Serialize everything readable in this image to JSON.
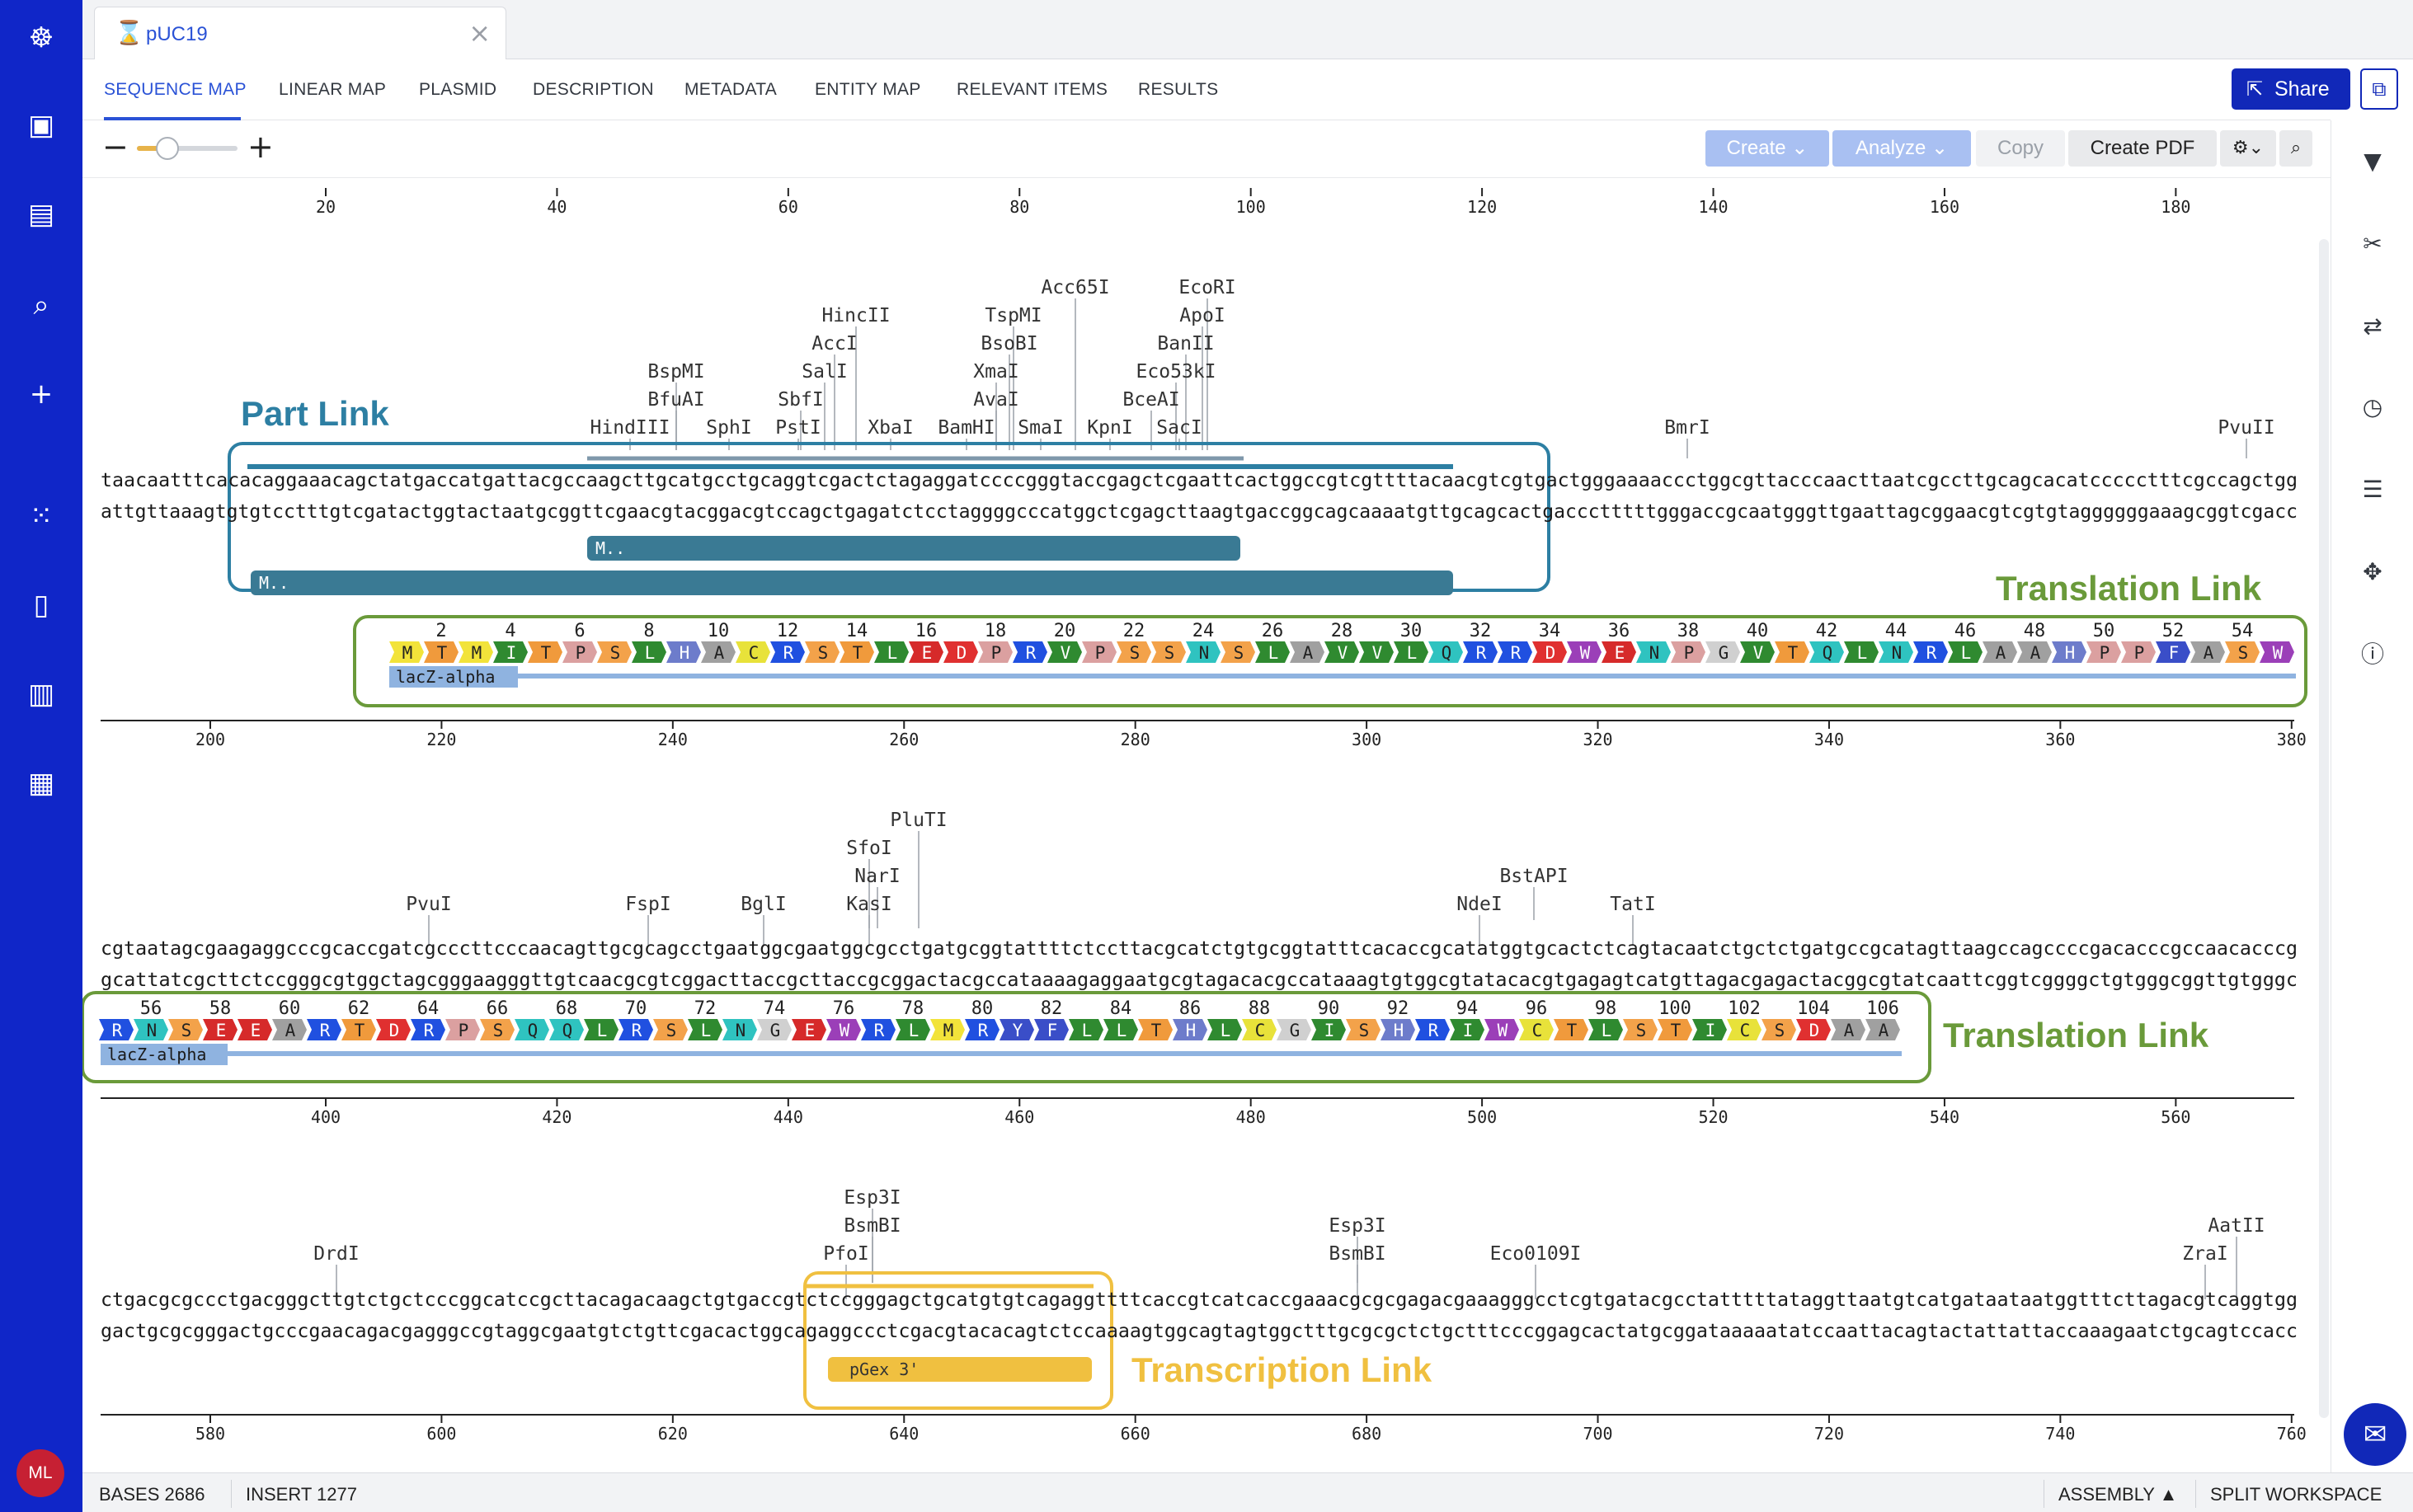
{
  "nav": {
    "icons": [
      "logo-icon",
      "briefcase-icon",
      "book-icon",
      "search-icon",
      "plus-icon",
      "apps-grid-icon",
      "notebook-icon",
      "bar-chart-icon",
      "camera-icon"
    ],
    "avatar_initials": "ML"
  },
  "document_tab": {
    "title": "pUC19",
    "icon": "hourglass-icon",
    "close": "×"
  },
  "view_tabs": [
    {
      "label": "SEQUENCE MAP",
      "active": true
    },
    {
      "label": "LINEAR MAP"
    },
    {
      "label": "PLASMID"
    },
    {
      "label": "DESCRIPTION"
    },
    {
      "label": "METADATA"
    },
    {
      "label": "ENTITY MAP"
    },
    {
      "label": "RELEVANT ITEMS"
    },
    {
      "label": "RESULTS"
    }
  ],
  "share_label": "Share",
  "toolbar": {
    "zoom_level": 0.3,
    "create_label": "Create",
    "analyze_label": "Analyze",
    "copy_label": "Copy",
    "pdf_label": "Create PDF"
  },
  "right_icons": [
    "bookmark-icon",
    "scissors-icon",
    "swap-icon",
    "history-icon",
    "list-icon",
    "move-icon",
    "info-icon"
  ],
  "row1": {
    "ruler_ticks": [
      "20",
      "40",
      "60",
      "80",
      "100",
      "120",
      "140",
      "160",
      "180"
    ],
    "bottom_ticks": [
      "200",
      "220",
      "240",
      "260",
      "280",
      "300",
      "320",
      "340",
      "360",
      "380"
    ],
    "seq_top": "taacaatttcacacaggaaacagctatgaccatgattacgccaagcttgcatgcctgcaggtcgactctagaggatccccgggtaccgagctcgaattcactggccgtcgttttacaacgtcgtgactgggaaaaccctggcgttacccaacttaatcgccttgcagcacatccccctttcgccagctgg",
    "seq_bottom": "attgttaaagtgtgtcctttgtcgatactggtactaatgcggttcgaacgtacggacgtccagctgagatctcctaggggcccatggctcgagcttaagtgaccggcagcaaaatgttgcagcactgaccctttttgggaccgcaatgggttgaattagcggaacgtcgtgtaggggggaaagcggtcgacc",
    "enzymes": [
      "Acc65I",
      "EcoRI",
      "HincII",
      "TspMI",
      "ApoI",
      "AccI",
      "BsoBI",
      "BanII",
      "BspMI",
      "SalI",
      "XmaI",
      "Eco53kI",
      "BfuAI",
      "SbfI",
      "AvaI",
      "BceAI",
      "HindIII",
      "SphI",
      "PstI",
      "XbaI",
      "BamHI",
      "SmaI",
      "KpnI",
      "SacI",
      "BmrI",
      "PvuII"
    ],
    "feature1": "M..",
    "feature2": "M..",
    "aa_numbers": [
      "2",
      "4",
      "6",
      "8",
      "10",
      "12",
      "14",
      "16",
      "18",
      "20",
      "22",
      "24",
      "26",
      "28",
      "30",
      "32",
      "34",
      "36",
      "38",
      "40",
      "42",
      "44",
      "46",
      "48",
      "50",
      "52",
      "54"
    ],
    "aas": [
      "M",
      "T",
      "M",
      "I",
      "T",
      "P",
      "S",
      "L",
      "H",
      "A",
      "C",
      "R",
      "S",
      "T",
      "L",
      "E",
      "D",
      "P",
      "R",
      "V",
      "P",
      "S",
      "S",
      "N",
      "S",
      "L",
      "A",
      "V",
      "V",
      "L",
      "Q",
      "R",
      "R",
      "D",
      "W",
      "E",
      "N",
      "P",
      "G",
      "V",
      "T",
      "Q",
      "L",
      "N",
      "R",
      "L",
      "A",
      "A",
      "H",
      "P",
      "P",
      "F",
      "A",
      "S",
      "W"
    ],
    "translation_label": "lacZ-alpha"
  },
  "row2": {
    "bottom_ticks": [
      "400",
      "420",
      "440",
      "460",
      "480",
      "500",
      "520",
      "540",
      "560"
    ],
    "seq_top": "cgtaatagcgaagaggcccgcaccgatcgcccttcccaacagttgcgcagcctgaatggcgaatggcgcctgatgcggtattttctccttacgcatctgtgcggtatttcacaccgcatatggtgcactctcagtacaatctgctctgatgccgcatagttaagccagccccgacacccgccaacacccg",
    "seq_bottom": "gcattatcgcttctccgggcgtggctagcgggaagggttgtcaacgcgtcggacttaccgcttaccgcggactacgccataaaagaggaatgcgtagacacgccataaagtgtggcgtatacacgtgagagtcatgttagacgagactacggcgtatcaattcggtcggggctgtgggcggttgtgggc",
    "enzymes": [
      "PluTI",
      "SfoI",
      "NarI",
      "BstAPI",
      "PvuI",
      "FspI",
      "BglI",
      "KasI",
      "NdeI",
      "TatI"
    ],
    "aa_numbers": [
      "56",
      "58",
      "60",
      "62",
      "64",
      "66",
      "68",
      "70",
      "72",
      "74",
      "76",
      "78",
      "80",
      "82",
      "84",
      "86",
      "88",
      "90",
      "92",
      "94",
      "96",
      "98",
      "100",
      "102",
      "104",
      "106"
    ],
    "aas": [
      "R",
      "N",
      "S",
      "E",
      "E",
      "A",
      "R",
      "T",
      "D",
      "R",
      "P",
      "S",
      "Q",
      "Q",
      "L",
      "R",
      "S",
      "L",
      "N",
      "G",
      "E",
      "W",
      "R",
      "L",
      "M",
      "R",
      "Y",
      "F",
      "L",
      "L",
      "T",
      "H",
      "L",
      "C",
      "G",
      "I",
      "S",
      "H",
      "R",
      "I",
      "W",
      "C",
      "T",
      "L",
      "S",
      "T",
      "I",
      "C",
      "S",
      "D",
      "A",
      "A"
    ],
    "translation_label": "lacZ-alpha"
  },
  "row3": {
    "bottom_ticks": [
      "580",
      "600",
      "620",
      "640",
      "660",
      "680",
      "700",
      "720",
      "740",
      "760"
    ],
    "seq_top": "ctgacgcgccctgacgggcttgtctgctcccggcatccgcttacagacaagctgtgaccgtctccgggagctgcatgtgtcagaggttttcaccgtcatcaccgaaacgcgcgagacgaaagggcctcgtgatacgcctatttttataggttaatgtcatgataataatggtttcttagacgtcaggtgg",
    "seq_bottom": "gactgcgcgggactgcccgaacagacgagggccgtaggcgaatgtctgttcgacactggcagaggccctcgacgtacacagtctccaaaagtggcagtagtggctttgcgcgctctgctttcccggagcactatgcggataaaaatatccaattacagtactattattaccaaagaatctgcagtccacc",
    "enzymes": [
      "Esp3I",
      "BsmBI",
      "Esp3I",
      "DrdI",
      "PfoI",
      "BsmBI",
      "Eco0109I",
      "AatII",
      "ZraI"
    ],
    "primer_label": "pGex 3'"
  },
  "callouts": {
    "part": "Part Link",
    "translation1": "Translation Link",
    "translation2": "Translation Link",
    "transcription": "Transcription Link"
  },
  "colors": {
    "part": "#2d7fa3",
    "translation": "#6a9a3a",
    "transcription": "#f0c040",
    "accent": "#2a52d6",
    "nav": "#1026c8"
  },
  "status": {
    "bases_label": "BASES 2686",
    "insert_label": "INSERT 1277",
    "assembly_label": "ASSEMBLY ▲",
    "split_label": "SPLIT WORKSPACE"
  }
}
